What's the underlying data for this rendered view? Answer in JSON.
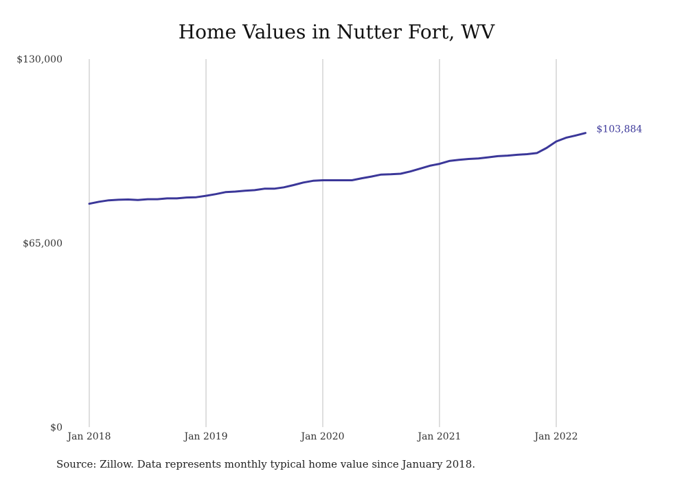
{
  "chart_data": {
    "type": "line",
    "title": "Home Values in Nutter Fort, WV",
    "xlabel": "",
    "ylabel": "",
    "x_ticks": [
      "Jan 2018",
      "Jan 2019",
      "Jan 2020",
      "Jan 2021",
      "Jan 2022"
    ],
    "y_ticks": [
      "$0",
      "$65,000",
      "$130,000"
    ],
    "y_tick_values": [
      0,
      65000,
      130000
    ],
    "ylim": [
      0,
      130000
    ],
    "xlim": [
      "2018-01",
      "2022-05"
    ],
    "grid": "vertical",
    "legend": "none",
    "color": "#3b3799",
    "series": [
      {
        "x": [
          "2018-01",
          "2018-02",
          "2018-03",
          "2018-04",
          "2018-05",
          "2018-06",
          "2018-07",
          "2018-08",
          "2018-09",
          "2018-10",
          "2018-11",
          "2018-12",
          "2019-01",
          "2019-02",
          "2019-03",
          "2019-04",
          "2019-05",
          "2019-06",
          "2019-07",
          "2019-08",
          "2019-09",
          "2019-10",
          "2019-11",
          "2019-12",
          "2020-01",
          "2020-02",
          "2020-03",
          "2020-04",
          "2020-05",
          "2020-06",
          "2020-07",
          "2020-08",
          "2020-09",
          "2020-10",
          "2020-11",
          "2020-12",
          "2021-01",
          "2021-02",
          "2021-03",
          "2021-04",
          "2021-05",
          "2021-06",
          "2021-07",
          "2021-08",
          "2021-09",
          "2021-10",
          "2021-11",
          "2021-12",
          "2022-01",
          "2022-02",
          "2022-03",
          "2022-04",
          "2022-05"
        ],
        "values": [
          78900,
          79600,
          80100,
          80300,
          80400,
          80200,
          80500,
          80500,
          80800,
          80800,
          81100,
          81200,
          81700,
          82300,
          83000,
          83200,
          83500,
          83700,
          84200,
          84200,
          84700,
          85500,
          86400,
          87000,
          87200,
          87200,
          87200,
          87200,
          87900,
          88500,
          89200,
          89300,
          89500,
          90300,
          91300,
          92300,
          93000,
          94000,
          94400,
          94700,
          94900,
          95300,
          95700,
          95900,
          96200,
          96400,
          96800,
          98600,
          100900,
          102200,
          103000,
          103884,
          103884
        ],
        "end_label": "$103,884"
      }
    ]
  },
  "source_note": "Source: Zillow. Data represents monthly typical home value since January 2018."
}
